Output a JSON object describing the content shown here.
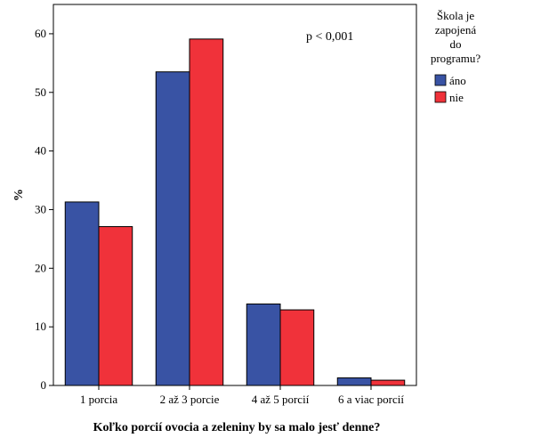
{
  "chart_data": {
    "type": "bar",
    "categories": [
      "1 porcia",
      "2 až 3 porcie",
      "4 až 5 porcií",
      "6 a viac porcií"
    ],
    "series": [
      {
        "name": "áno",
        "color": "#3953a4",
        "values": [
          31.3,
          53.5,
          13.9,
          1.3
        ]
      },
      {
        "name": "nie",
        "color": "#f0323a",
        "values": [
          27.1,
          59.1,
          12.9,
          0.9
        ]
      }
    ],
    "xlabel": "Koľko porcií ovocia a zeleniny by sa malo jesť denne?",
    "ylabel": "%",
    "ylim": [
      0,
      65
    ],
    "yticks": [
      "0",
      "10",
      "20",
      "30",
      "40",
      "50",
      "60"
    ],
    "legend": {
      "title_lines": [
        "Škola je",
        "zapojená",
        "do",
        "programu?"
      ],
      "placement": "right"
    },
    "annotation": "p < 0,001",
    "grid": false
  }
}
